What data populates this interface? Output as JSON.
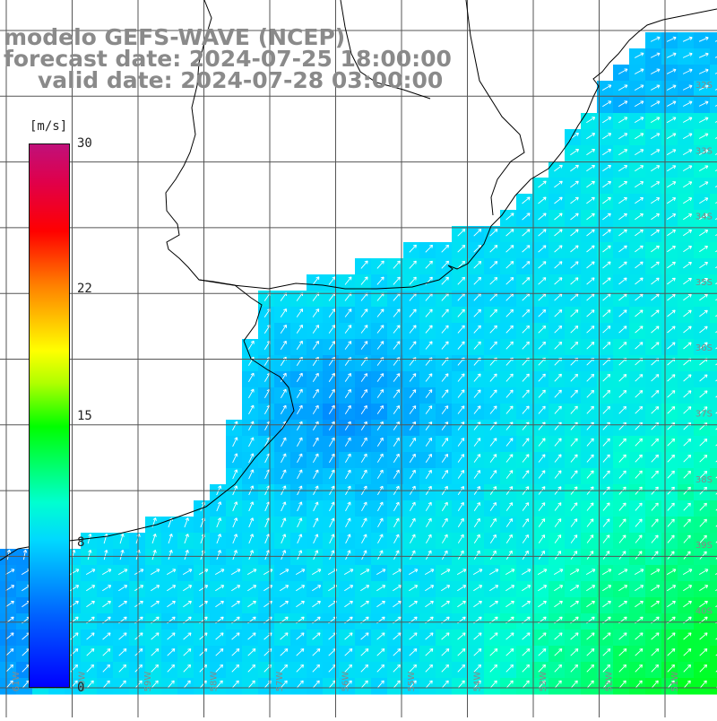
{
  "title": {
    "line1": "modelo GEFS-WAVE (NCEP)",
    "line2": "forecast date: 2024-07-25 18:00:00",
    "line3": "valid date: 2024-07-28 03:00:00"
  },
  "colorbar": {
    "unit": "[m/s]",
    "ticks": [
      {
        "label": "30",
        "value": 30
      },
      {
        "label": "22",
        "value": 22
      },
      {
        "label": "15",
        "value": 15
      },
      {
        "label": "8",
        "value": 8
      },
      {
        "label": "0",
        "value": 0
      }
    ],
    "min": 0,
    "max": 30
  },
  "lat_labels": [
    "32S",
    "33S",
    "34S",
    "35S",
    "36S",
    "37S",
    "38S",
    "39S",
    "40S"
  ],
  "lon_labels": [
    "61W",
    "60W",
    "59W",
    "58W",
    "57W",
    "56W",
    "55W",
    "54W",
    "53W",
    "52W",
    "51W"
  ],
  "colors": {
    "land": "#ffffff",
    "grid": "#555555",
    "coast": "#000000",
    "arrow": "#ffffff"
  }
}
